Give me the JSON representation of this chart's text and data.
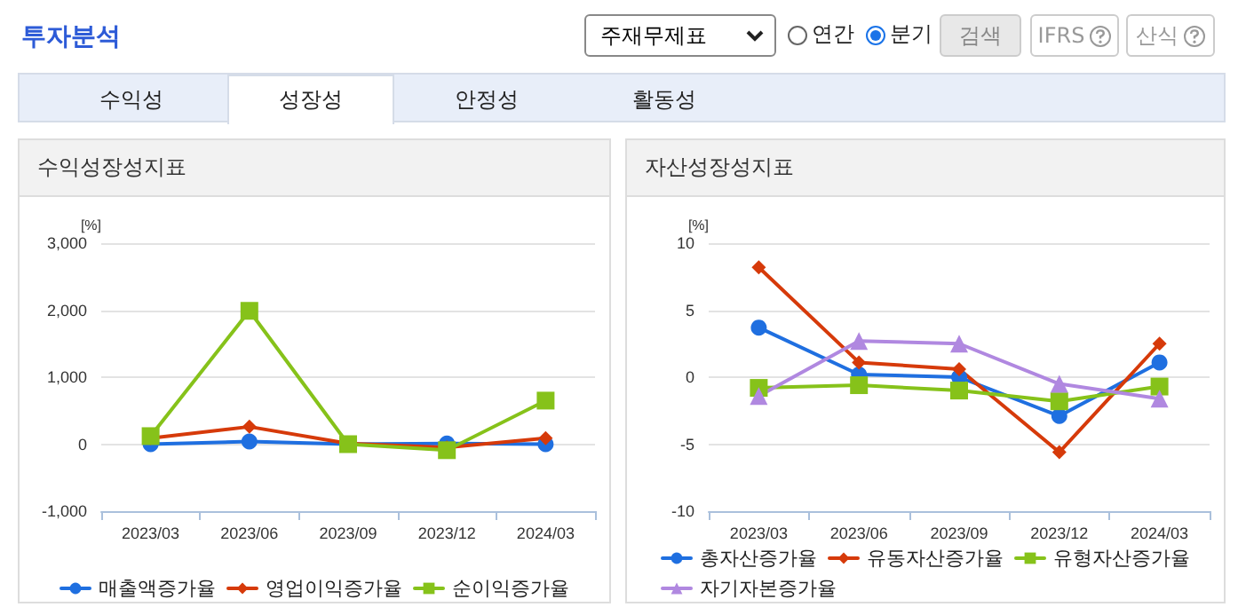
{
  "chart_data": [
    {
      "type": "other",
      "title": "투자분석",
      "annotations": [
        "주재무제표",
        "연간",
        "분기",
        "검색",
        "IFRS",
        "산식",
        "수익성",
        "성장성",
        "안정성",
        "활동성"
      ]
    },
    {
      "type": "line",
      "title": "수익성장성지표",
      "ylabel": "[%]",
      "categories": [
        "2023/03",
        "2023/06",
        "2023/09",
        "2023/12",
        "2024/03"
      ],
      "ylim": [
        -1000,
        3000
      ],
      "yticks": [
        {
          "value": -1000,
          "label": "-1,000"
        },
        0,
        {
          "value": 1000,
          "label": "1,000"
        },
        {
          "value": 2000,
          "label": "2,000"
        },
        {
          "value": 3000,
          "label": "3,000"
        }
      ],
      "grid": "y",
      "legend": "bottom",
      "line_style": "solid",
      "series": [
        {
          "name": "매출액증가율",
          "color": "#1f6fe0",
          "marker": "circle",
          "values": [
            0,
            40,
            0,
            10,
            0
          ]
        },
        {
          "name": "영업이익증가율",
          "color": "#d63a0a",
          "marker": "diamond",
          "values": [
            90,
            260,
            10,
            -50,
            90
          ]
        },
        {
          "name": "순이익증가율",
          "color": "#86c21a",
          "marker": "square",
          "values": [
            120,
            1990,
            0,
            -90,
            650
          ]
        }
      ]
    },
    {
      "type": "line",
      "title": "자산성장성지표",
      "ylabel": "[%]",
      "categories": [
        "2023/03",
        "2023/06",
        "2023/09",
        "2023/12",
        "2024/03"
      ],
      "ylim": [
        -10,
        10
      ],
      "yticks": [
        -10,
        -5,
        0,
        5,
        10
      ],
      "grid": "y",
      "legend": "bottom",
      "line_style": "solid",
      "series": [
        {
          "name": "총자산증가율",
          "color": "#1f6fe0",
          "marker": "circle",
          "values": [
            3.7,
            0.2,
            0.0,
            -2.9,
            1.1
          ]
        },
        {
          "name": "유동자산증가율",
          "color": "#d63a0a",
          "marker": "diamond",
          "values": [
            8.2,
            1.1,
            0.6,
            -5.6,
            2.5
          ]
        },
        {
          "name": "유형자산증가율",
          "color": "#86c21a",
          "marker": "square",
          "values": [
            -0.8,
            -0.6,
            -1.0,
            -1.8,
            -0.7
          ]
        },
        {
          "name": "자기자본증가율",
          "color": "#b088e0",
          "marker": "triangle",
          "values": [
            -1.4,
            2.7,
            2.5,
            -0.5,
            -1.6
          ]
        }
      ]
    }
  ]
}
